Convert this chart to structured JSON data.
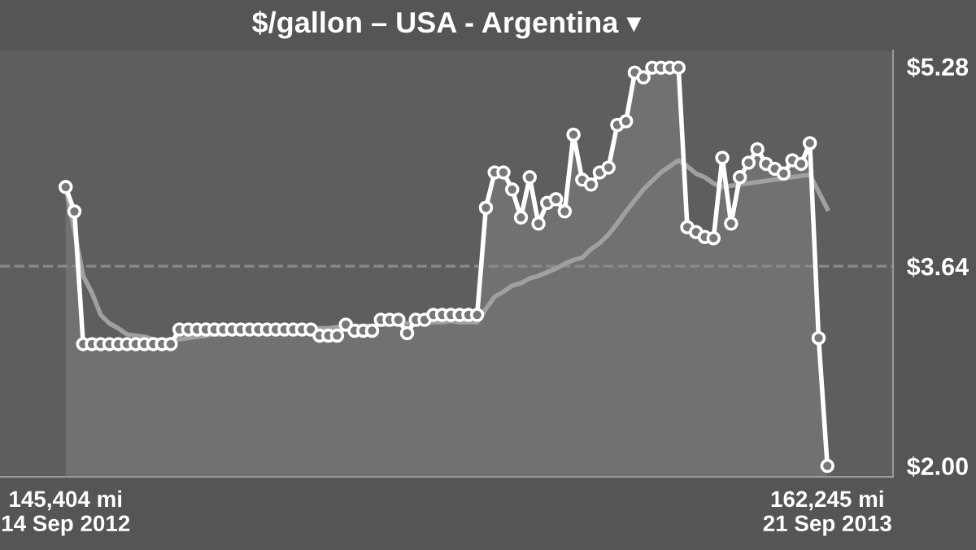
{
  "chart_data": {
    "type": "line",
    "title": "$/gallon – USA - Argentina ▾",
    "categories": [
      "145,404 mi\n14 Sep 2012",
      null,
      null,
      null,
      null,
      null,
      null,
      null,
      null,
      null,
      null,
      null,
      null,
      null,
      null,
      null,
      null,
      null,
      null,
      null,
      null,
      null,
      null,
      null,
      null,
      null,
      null,
      null,
      null,
      null,
      null,
      null,
      null,
      null,
      null,
      null,
      null,
      null,
      null,
      null,
      null,
      null,
      null,
      null,
      null,
      null,
      null,
      null,
      null,
      null,
      null,
      null,
      null,
      null,
      null,
      null,
      null,
      null,
      null,
      null,
      null,
      null,
      null,
      null,
      null,
      null,
      null,
      null,
      null,
      null,
      null,
      null,
      null,
      null,
      null,
      null,
      null,
      null,
      null,
      null,
      null,
      null,
      null,
      null,
      null,
      null,
      null,
      "162,245 mi\n21 Sep 2013"
    ],
    "ylim": [
      1.91,
      5.41
    ],
    "yticks": [
      {
        "value": 2.0,
        "label": "$2.00"
      },
      {
        "value": 3.64,
        "label": "$3.64"
      },
      {
        "value": 5.28,
        "label": "$5.28"
      }
    ],
    "ref_lines": [
      {
        "axis": "y",
        "value": 3.64,
        "color": "#8a8a8a",
        "line_style": "dashed"
      }
    ],
    "grid": false,
    "legend": false,
    "series": [
      {
        "type": "area",
        "color": "#ffffff",
        "marker": "circle",
        "line_style": "solid",
        "values": [
          4.29,
          4.09,
          3.0,
          3.0,
          3.0,
          3.0,
          3.0,
          3.0,
          3.0,
          3.0,
          3.0,
          3.0,
          3.0,
          3.12,
          3.12,
          3.12,
          3.12,
          3.12,
          3.12,
          3.12,
          3.12,
          3.12,
          3.12,
          3.12,
          3.12,
          3.12,
          3.12,
          3.12,
          3.12,
          3.07,
          3.07,
          3.07,
          3.16,
          3.11,
          3.11,
          3.11,
          3.2,
          3.2,
          3.2,
          3.09,
          3.2,
          3.2,
          3.24,
          3.24,
          3.24,
          3.24,
          3.24,
          3.24,
          4.12,
          4.41,
          4.41,
          4.27,
          4.04,
          4.37,
          3.99,
          4.16,
          4.19,
          4.09,
          4.72,
          4.35,
          4.31,
          4.41,
          4.45,
          4.8,
          4.83,
          5.23,
          5.19,
          5.27,
          5.27,
          5.27,
          5.27,
          3.96,
          3.92,
          3.88,
          3.87,
          4.53,
          3.99,
          4.37,
          4.49,
          4.6,
          4.48,
          4.44,
          4.4,
          4.51,
          4.48,
          4.65,
          3.05,
          2.0
        ]
      },
      {
        "color": "#a0a0a0",
        "marker": "none",
        "line_style": "solid",
        "values": [
          4.29,
          3.93,
          3.56,
          3.42,
          3.24,
          3.17,
          3.13,
          3.08,
          3.07,
          3.06,
          3.04,
          3.03,
          3.04,
          3.04,
          3.05,
          3.06,
          3.07,
          3.08,
          3.08,
          3.09,
          3.09,
          3.1,
          3.1,
          3.11,
          3.11,
          3.12,
          3.12,
          3.12,
          3.13,
          3.13,
          3.13,
          3.14,
          3.14,
          3.15,
          3.15,
          3.15,
          3.16,
          3.16,
          3.17,
          3.17,
          3.17,
          3.18,
          3.18,
          3.18,
          3.19,
          3.18,
          3.18,
          3.18,
          3.29,
          3.39,
          3.43,
          3.48,
          3.5,
          3.54,
          3.56,
          3.59,
          3.62,
          3.66,
          3.69,
          3.71,
          3.78,
          3.83,
          3.9,
          3.99,
          4.09,
          4.18,
          4.27,
          4.34,
          4.41,
          4.46,
          4.51,
          4.46,
          4.4,
          4.37,
          4.32,
          4.29,
          4.3,
          4.31,
          4.32,
          4.33,
          4.34,
          4.35,
          4.36,
          4.37,
          4.38,
          4.39,
          4.25,
          4.11
        ]
      }
    ]
  }
}
